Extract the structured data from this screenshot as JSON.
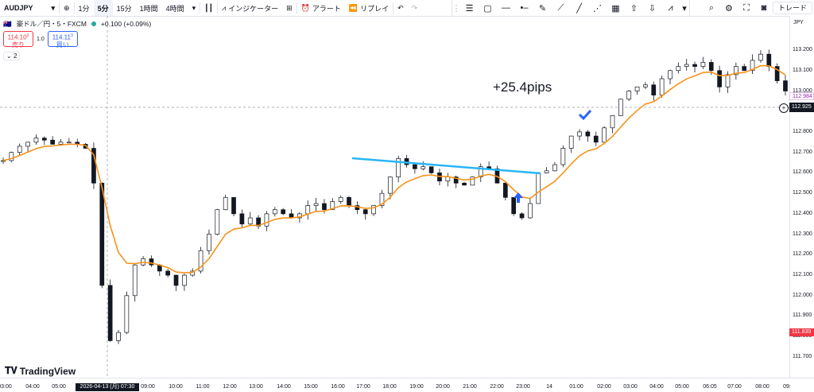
{
  "toolbar": {
    "symbol": "AUDJPY",
    "timeframes": [
      "1分",
      "5分",
      "15分",
      "1時間",
      "4時間"
    ],
    "active_timeframe": "5分",
    "indicators_label": "インジケーター",
    "alert_label": "アラート",
    "replay_label": "リプレイ",
    "trade_label": "トレード"
  },
  "legend": {
    "title": "豪ドル／円・5・FXCM",
    "change": "+0.100 (+0.09%)"
  },
  "order_panel": {
    "sell_price": "114.10",
    "sell_price_sup": "3",
    "sell_label": "売り",
    "spread": "1.0",
    "buy_price": "114.11",
    "buy_price_sup": "3",
    "buy_label": "買い"
  },
  "collapse_count": "2",
  "annotation": "+25.4pips",
  "axis": {
    "currency": "JPY",
    "y_ticks": [
      "113.200",
      "113.100",
      "113.000",
      "112.900",
      "112.800",
      "112.700",
      "112.600",
      "112.500",
      "112.400",
      "112.300",
      "112.200",
      "112.100",
      "112.000",
      "111.900",
      "111.800",
      "111.700"
    ],
    "x_ticks": [
      "03:00",
      "04:00",
      "05:00",
      "07:30",
      "09:00",
      "10:00",
      "11:00",
      "12:00",
      "13:00",
      "14:00",
      "15:00",
      "16:00",
      "17:00",
      "18:00",
      "19:00",
      "20:00",
      "21:00",
      "22:00",
      "23:00",
      "14",
      "01:00",
      "02:00",
      "03:00",
      "04:00",
      "05:00",
      "06:05",
      "07:00",
      "08:00",
      "09:"
    ],
    "date_label": "2026-04-13 (月)",
    "crosshair_price": "112.925",
    "last_price": "112.984",
    "low_price": "111.839"
  },
  "logo_text": "TradingView",
  "colors": {
    "up": "#131722",
    "ma_orange": "#f7931a",
    "ma_teal": "#26a69a",
    "trendline": "#29b6f6",
    "arrow_blue": "#2962ff"
  },
  "chart_data": {
    "type": "candlestick",
    "close_series": [
      112.66,
      112.7,
      112.73,
      112.75,
      112.77,
      112.76,
      112.74,
      112.75,
      112.75,
      112.74,
      112.72,
      112.55,
      112.05,
      111.78,
      111.82,
      112.0,
      112.15,
      112.18,
      112.15,
      112.12,
      112.1,
      112.05,
      112.1,
      112.12,
      112.22,
      112.3,
      112.42,
      112.48,
      112.4,
      112.35,
      112.38,
      112.34,
      112.4,
      112.42,
      112.4,
      112.38,
      112.4,
      112.44,
      112.45,
      112.42,
      112.46,
      112.48,
      112.44,
      112.42,
      112.4,
      112.44,
      112.5,
      112.58,
      112.67,
      112.64,
      112.62,
      112.63,
      112.6,
      112.56,
      112.58,
      112.55,
      112.54,
      112.58,
      112.63,
      112.62,
      112.55,
      112.48,
      112.4,
      112.38,
      112.45,
      112.6,
      112.61,
      112.64,
      112.72,
      112.78,
      112.8,
      112.78,
      112.75,
      112.82,
      112.88,
      112.96,
      113.0,
      113.02,
      113.03,
      112.98,
      113.06,
      113.1,
      113.12,
      113.13,
      113.12,
      113.14,
      113.1,
      113.02,
      113.08,
      113.12,
      113.1,
      113.15,
      113.18,
      113.12,
      113.05,
      113.0
    ]
  }
}
